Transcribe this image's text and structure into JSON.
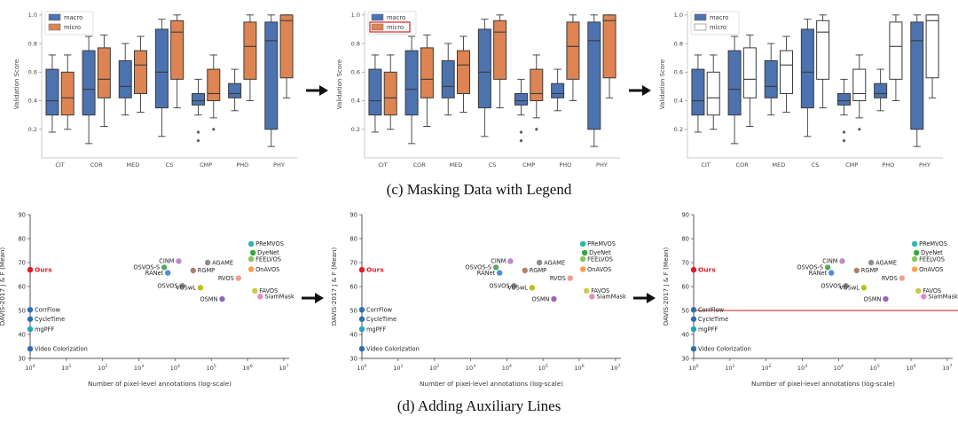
{
  "figure": {
    "caption_c": "(c) Masking Data with Legend",
    "caption_d": "(d) Adding Auxiliary Lines"
  },
  "chart_data": [
    {
      "id": "box",
      "type": "box",
      "title": "",
      "ylabel": "Validation Score",
      "categories": [
        "CIT",
        "COR",
        "MED",
        "CS",
        "CMP",
        "PHO",
        "PHY"
      ],
      "ylim": [
        0,
        1.03
      ],
      "yticks": [
        0.2,
        0.4,
        0.6,
        0.8,
        1.0
      ],
      "legend_position": "upper-left",
      "legend": [
        {
          "name": "macro",
          "color": "#4c72b0"
        },
        {
          "name": "micro",
          "color": "#dd8452"
        }
      ],
      "series": [
        {
          "name": "macro",
          "color": "#4c72b0",
          "boxes": [
            {
              "whislo": 0.18,
              "q1": 0.3,
              "med": 0.4,
              "q3": 0.62,
              "whishi": 0.72
            },
            {
              "whislo": 0.1,
              "q1": 0.3,
              "med": 0.48,
              "q3": 0.75,
              "whishi": 0.85
            },
            {
              "whislo": 0.3,
              "q1": 0.42,
              "med": 0.5,
              "q3": 0.68,
              "whishi": 0.8
            },
            {
              "whislo": 0.15,
              "q1": 0.35,
              "med": 0.6,
              "q3": 0.9,
              "whishi": 0.97
            },
            {
              "whislo": 0.3,
              "q1": 0.37,
              "med": 0.4,
              "q3": 0.45,
              "whishi": 0.55,
              "outliers": [
                0.18,
                0.12
              ]
            },
            {
              "whislo": 0.33,
              "q1": 0.42,
              "med": 0.45,
              "q3": 0.52,
              "whishi": 0.62
            },
            {
              "whislo": 0.08,
              "q1": 0.2,
              "med": 0.82,
              "q3": 0.95,
              "whishi": 1.0
            }
          ]
        },
        {
          "name": "micro",
          "color": "#dd8452",
          "boxes": [
            {
              "whislo": 0.2,
              "q1": 0.3,
              "med": 0.42,
              "q3": 0.6,
              "whishi": 0.72
            },
            {
              "whislo": 0.22,
              "q1": 0.42,
              "med": 0.55,
              "q3": 0.77,
              "whishi": 0.86
            },
            {
              "whislo": 0.32,
              "q1": 0.45,
              "med": 0.65,
              "q3": 0.75,
              "whishi": 0.85
            },
            {
              "whislo": 0.35,
              "q1": 0.55,
              "med": 0.88,
              "q3": 0.96,
              "whishi": 1.0
            },
            {
              "whislo": 0.28,
              "q1": 0.4,
              "med": 0.45,
              "q3": 0.62,
              "whishi": 0.72,
              "outliers": [
                0.2
              ]
            },
            {
              "whislo": 0.4,
              "q1": 0.55,
              "med": 0.78,
              "q3": 0.95,
              "whishi": 1.0
            },
            {
              "whislo": 0.42,
              "q1": 0.56,
              "med": 0.96,
              "q3": 1.0,
              "whishi": 1.0
            }
          ]
        }
      ],
      "variants": [
        {
          "name": "original",
          "legend_highlight": null,
          "masked_series": null
        },
        {
          "name": "legend-highlighted",
          "legend_highlight": "micro",
          "masked_series": null
        },
        {
          "name": "micro-masked",
          "legend_highlight": null,
          "masked_series": "micro"
        }
      ]
    },
    {
      "id": "scatter",
      "type": "scatter",
      "xlabel": "Number of pixel-level annotations (log-scale)",
      "ylabel": "DAVIS-2017 J & F (Mean)",
      "xscale": "log10",
      "xlim_exp": [
        0,
        7
      ],
      "xticks_exp": [
        0,
        1,
        2,
        3,
        4,
        5,
        6,
        7
      ],
      "ylim": [
        30,
        90
      ],
      "yticks": [
        30,
        40,
        50,
        60,
        70,
        80,
        90
      ],
      "auxiliary_line": {
        "y": 50,
        "color": "#d11a1a"
      },
      "points": [
        {
          "label": "Ours",
          "exp": 0,
          "y": 67.0,
          "color": "#e01b24",
          "anchor": "right",
          "bold": true
        },
        {
          "label": "CorrFlow",
          "exp": 0,
          "y": 50.3,
          "color": "#2f6fb3",
          "anchor": "right"
        },
        {
          "label": "CycleTime",
          "exp": 0,
          "y": 46.4,
          "color": "#2f6fb3",
          "anchor": "right"
        },
        {
          "label": "mgPFF",
          "exp": 0,
          "y": 42.2,
          "color": "#22a7b8",
          "anchor": "right"
        },
        {
          "label": "Video Colorization",
          "exp": 0,
          "y": 34.0,
          "color": "#2f6fb3",
          "anchor": "right"
        },
        {
          "label": "OSVOS-S",
          "exp": 3.7,
          "y": 68.0,
          "color": "#57a85c",
          "anchor": "left"
        },
        {
          "label": "CINM",
          "exp": 4.1,
          "y": 70.6,
          "color": "#ba8bc9",
          "anchor": "left"
        },
        {
          "label": "RANet",
          "exp": 3.8,
          "y": 65.7,
          "color": "#4c8ed9",
          "anchor": "left"
        },
        {
          "label": "AGAME",
          "exp": 4.9,
          "y": 70.0,
          "color": "#8c8c8c",
          "anchor": "right"
        },
        {
          "label": "RGMP",
          "exp": 4.5,
          "y": 66.7,
          "color": "#b08068",
          "anchor": "right"
        },
        {
          "label": "OSVOS",
          "exp": 4.2,
          "y": 60.3,
          "color": "#8c8c8c",
          "anchor": "left"
        },
        {
          "label": "VOSwL",
          "exp": 4.7,
          "y": 59.5,
          "color": "#bcbd22",
          "anchor": "left"
        },
        {
          "label": "OSMN",
          "exp": 5.3,
          "y": 54.8,
          "color": "#9467bd",
          "anchor": "left"
        },
        {
          "label": "RVOS",
          "exp": 5.75,
          "y": 63.5,
          "color": "#f29e8e",
          "anchor": "left"
        },
        {
          "label": "PReMVOS",
          "exp": 6.1,
          "y": 77.8,
          "color": "#2bb8a8",
          "anchor": "right"
        },
        {
          "label": "DyeNet",
          "exp": 6.15,
          "y": 74.1,
          "color": "#37a837",
          "anchor": "right"
        },
        {
          "label": "FEELVOS",
          "exp": 6.1,
          "y": 71.5,
          "color": "#86c55f",
          "anchor": "right"
        },
        {
          "label": "OnAVOS",
          "exp": 6.1,
          "y": 67.2,
          "color": "#ff9f4a",
          "anchor": "right"
        },
        {
          "label": "FAVOS",
          "exp": 6.2,
          "y": 58.2,
          "color": "#c9c94a",
          "anchor": "right"
        },
        {
          "label": "SiamMask",
          "exp": 6.35,
          "y": 55.8,
          "color": "#e88ac0",
          "anchor": "right"
        }
      ],
      "variants": [
        {
          "name": "original",
          "show_line": false
        },
        {
          "name": "original-repeat",
          "show_line": false
        },
        {
          "name": "with-auxiliary-line",
          "show_line": true
        }
      ]
    }
  ]
}
